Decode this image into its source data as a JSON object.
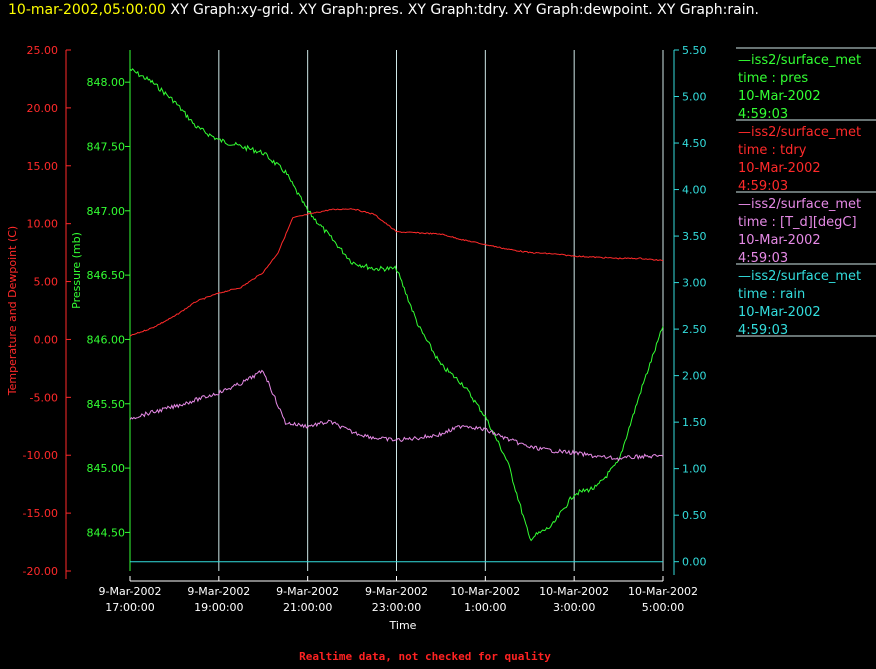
{
  "header": {
    "timestamp": "10-mar-2002,05:00:00",
    "graphs": "XY Graph:xy-grid.  XY Graph:pres.  XY Graph:tdry.  XY Graph:dewpoint.  XY Graph:rain."
  },
  "footer_note": "Realtime data, not checked for quality",
  "colors": {
    "pres": "#33ff33",
    "tdry": "#ff2a2a",
    "dewpoint": "#e68ae6",
    "rain": "#33dddd",
    "grid": "#cfe8e8",
    "title_time": "#ffff00"
  },
  "chart_data": {
    "type": "line",
    "xlabel": "Time",
    "x_ticks": [
      [
        "9-Mar-2002",
        "17:00:00"
      ],
      [
        "9-Mar-2002",
        "19:00:00"
      ],
      [
        "9-Mar-2002",
        "21:00:00"
      ],
      [
        "9-Mar-2002",
        "23:00:00"
      ],
      [
        "10-Mar-2002",
        "1:00:00"
      ],
      [
        "10-Mar-2002",
        "3:00:00"
      ],
      [
        "10-Mar-2002",
        "5:00:00"
      ]
    ],
    "xlim": [
      "2002-03-09 17:00",
      "2002-03-10 05:00"
    ],
    "grid": "vertical",
    "axes": {
      "temperature": {
        "label": "Temperature and Dewpoint (C)",
        "ticks": [
          "25.00",
          "20.00",
          "15.00",
          "10.00",
          "5.00",
          "0.00",
          "-5.00",
          "-10.00",
          "-15.00",
          "-20.00"
        ],
        "range": [
          -20,
          25
        ]
      },
      "pressure": {
        "label": "Pressure (mb)",
        "ticks": [
          "848.00",
          "847.50",
          "847.00",
          "846.50",
          "846.00",
          "845.50",
          "845.00",
          "844.50"
        ],
        "range": [
          844.2,
          848.25
        ]
      },
      "rain": {
        "label": "",
        "ticks": [
          "5.50",
          "5.00",
          "4.50",
          "4.00",
          "3.50",
          "3.00",
          "2.50",
          "2.00",
          "1.50",
          "1.00",
          "0.50",
          "0.00"
        ],
        "range": [
          -0.1,
          5.5
        ]
      }
    },
    "series": [
      {
        "key": "pres",
        "axis": "pressure",
        "x": [
          "2002-03-09 17:00",
          "2002-03-09 17:30",
          "2002-03-09 18:00",
          "2002-03-09 18:30",
          "2002-03-09 19:00",
          "2002-03-09 19:30",
          "2002-03-09 20:00",
          "2002-03-09 20:30",
          "2002-03-09 21:00",
          "2002-03-09 21:30",
          "2002-03-09 22:00",
          "2002-03-09 22:30",
          "2002-03-09 23:00",
          "2002-03-09 23:30",
          "2002-03-10 00:00",
          "2002-03-10 00:30",
          "2002-03-10 01:00",
          "2002-03-10 01:30",
          "2002-03-10 02:00",
          "2002-03-10 02:30",
          "2002-03-10 03:00",
          "2002-03-10 03:30",
          "2002-03-10 04:00",
          "2002-03-10 04:30",
          "2002-03-10 05:00"
        ],
        "values": [
          848.1,
          848.0,
          847.85,
          847.65,
          847.55,
          847.5,
          847.45,
          847.3,
          847.0,
          846.8,
          846.6,
          846.55,
          846.55,
          846.1,
          845.8,
          845.65,
          845.4,
          845.05,
          844.45,
          844.55,
          844.8,
          844.85,
          845.05,
          845.6,
          846.1
        ]
      },
      {
        "key": "tdry",
        "axis": "temperature",
        "x": [
          "2002-03-09 17:00",
          "2002-03-09 17:30",
          "2002-03-09 18:00",
          "2002-03-09 18:30",
          "2002-03-09 19:00",
          "2002-03-09 19:30",
          "2002-03-09 20:00",
          "2002-03-09 20:20",
          "2002-03-09 20:40",
          "2002-03-09 21:00",
          "2002-03-09 21:30",
          "2002-03-09 22:00",
          "2002-03-09 22:30",
          "2002-03-09 23:00",
          "2002-03-09 23:30",
          "2002-03-10 00:00",
          "2002-03-10 00:30",
          "2002-03-10 01:00",
          "2002-03-10 01:30",
          "2002-03-10 02:00",
          "2002-03-10 02:30",
          "2002-03-10 03:00",
          "2002-03-10 03:30",
          "2002-03-10 04:00",
          "2002-03-10 04:30",
          "2002-03-10 05:00"
        ],
        "values": [
          0.3,
          1.0,
          2.0,
          3.3,
          4.0,
          4.5,
          5.8,
          7.5,
          10.5,
          10.8,
          11.2,
          11.3,
          10.8,
          9.3,
          9.2,
          9.1,
          8.6,
          8.2,
          7.8,
          7.5,
          7.4,
          7.2,
          7.1,
          7.0,
          7.0,
          6.8
        ]
      },
      {
        "key": "dewpoint",
        "axis": "temperature",
        "x": [
          "2002-03-09 17:00",
          "2002-03-09 17:30",
          "2002-03-09 18:00",
          "2002-03-09 18:30",
          "2002-03-09 19:00",
          "2002-03-09 19:30",
          "2002-03-09 20:00",
          "2002-03-09 20:30",
          "2002-03-09 21:00",
          "2002-03-09 21:30",
          "2002-03-09 22:00",
          "2002-03-09 22:30",
          "2002-03-09 23:00",
          "2002-03-09 23:30",
          "2002-03-10 00:00",
          "2002-03-10 00:30",
          "2002-03-10 01:00",
          "2002-03-10 01:30",
          "2002-03-10 02:00",
          "2002-03-10 02:30",
          "2002-03-10 03:00",
          "2002-03-10 03:30",
          "2002-03-10 04:00",
          "2002-03-10 04:30",
          "2002-03-10 05:00"
        ],
        "values": [
          -6.8,
          -6.3,
          -5.8,
          -5.2,
          -4.6,
          -3.8,
          -2.7,
          -7.2,
          -7.5,
          -7.1,
          -8.0,
          -8.5,
          -8.7,
          -8.5,
          -8.2,
          -7.4,
          -7.8,
          -8.6,
          -9.3,
          -9.6,
          -9.8,
          -10.1,
          -10.3,
          -10.1,
          -10.1
        ]
      },
      {
        "key": "rain",
        "axis": "rain",
        "x": [
          "2002-03-09 17:00",
          "2002-03-10 05:00"
        ],
        "values": [
          0.0,
          0.0
        ]
      }
    ],
    "legend_position": "right",
    "legend": [
      {
        "key": "pres",
        "lines": [
          "—iss2/surface_met",
          "time : pres",
          "10-Mar-2002",
          "4:59:03"
        ]
      },
      {
        "key": "tdry",
        "lines": [
          "—iss2/surface_met",
          "time : tdry",
          "10-Mar-2002",
          "4:59:03"
        ]
      },
      {
        "key": "dewpoint",
        "lines": [
          "—iss2/surface_met",
          "time : [T_d][degC]",
          "10-Mar-2002",
          "4:59:03"
        ]
      },
      {
        "key": "rain",
        "lines": [
          "—iss2/surface_met",
          "time : rain",
          "10-Mar-2002",
          "4:59:03"
        ]
      }
    ]
  }
}
